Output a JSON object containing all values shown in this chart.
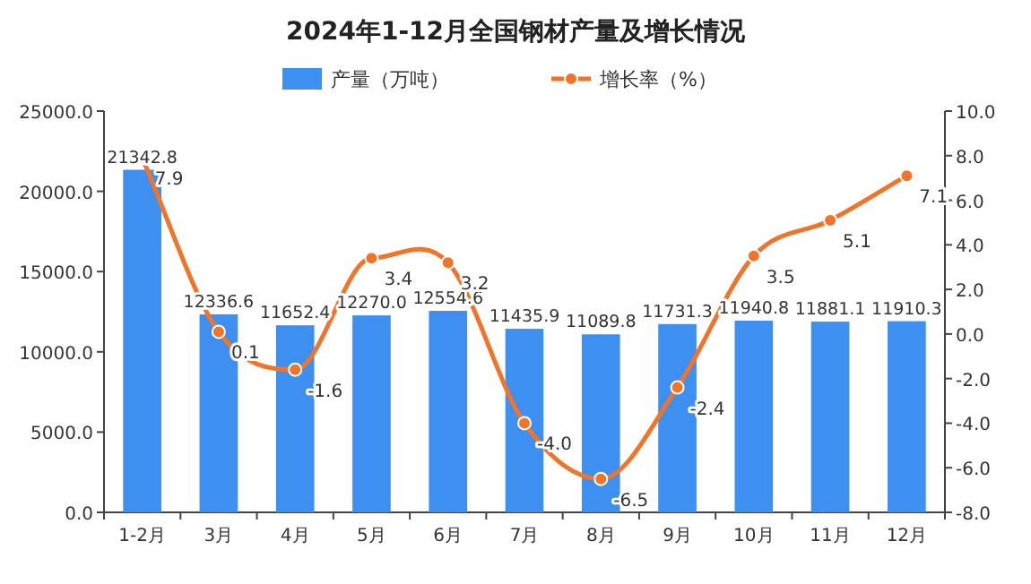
{
  "chart_data": {
    "type": "bar",
    "title": "2024年1-12月全国钢材产量及增长情况",
    "categories": [
      "1-2月",
      "3月",
      "4月",
      "5月",
      "6月",
      "7月",
      "8月",
      "9月",
      "10月",
      "11月",
      "12月"
    ],
    "series": [
      {
        "name": "产量（万吨）",
        "color": "#3d8ff0",
        "values": [
          21342.8,
          12336.6,
          11652.4,
          12270.0,
          12554.6,
          11435.9,
          11089.8,
          11731.3,
          11940.8,
          11881.1,
          11910.3
        ],
        "value_labels": [
          "21342.8",
          "12336.6",
          "11652.4",
          "12270.0",
          "12554.6",
          "11435.9",
          "11089.8",
          "11731.3",
          "11940.8",
          "11881.1",
          "11910.3"
        ]
      },
      {
        "name": "增长率（%）",
        "type": "line",
        "axis": "y2",
        "color": "#f0742a",
        "marker": "circle",
        "values": [
          7.9,
          0.1,
          -1.6,
          3.4,
          3.2,
          -4.0,
          -6.5,
          -2.4,
          3.5,
          5.1,
          7.1
        ],
        "value_labels": [
          "7.9",
          "0.1",
          "-1.6",
          "3.4",
          "3.2",
          "-4.0",
          "-6.5",
          "-2.4",
          "3.5",
          "5.1",
          "7.1"
        ]
      }
    ],
    "ylim": [
      0,
      25000
    ],
    "yticks": [
      {
        "value": 0,
        "label": "0.0"
      },
      {
        "value": 5000,
        "label": "5000.0"
      },
      {
        "value": 10000,
        "label": "10000.0"
      },
      {
        "value": 15000,
        "label": "15000.0"
      },
      {
        "value": 20000,
        "label": "20000.0"
      },
      {
        "value": 25000,
        "label": "25000.0"
      }
    ],
    "y2lim": [
      -8,
      10
    ],
    "y2ticks": [
      {
        "value": -8,
        "label": "-8.0"
      },
      {
        "value": -6,
        "label": "-6.0"
      },
      {
        "value": -4,
        "label": "-4.0"
      },
      {
        "value": -2,
        "label": "-2.0"
      },
      {
        "value": 0,
        "label": "0.0"
      },
      {
        "value": 2,
        "label": "2.0"
      },
      {
        "value": 4,
        "label": "4.0"
      },
      {
        "value": 6,
        "label": "6.0"
      },
      {
        "value": 8,
        "label": "8.0"
      },
      {
        "value": 10,
        "label": "10.0"
      }
    ],
    "legend": "top"
  }
}
